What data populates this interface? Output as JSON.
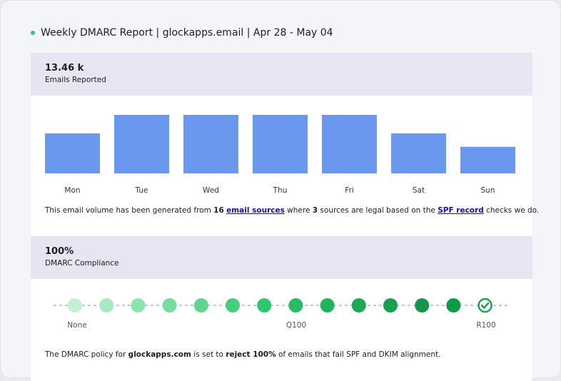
{
  "title": "Weekly DMARC Report | glockapps.email | Apr 28 - May 04",
  "status_color": "#2ecc71",
  "emails": {
    "value": "13.46 k",
    "label": "Emails Reported"
  },
  "chart_data": {
    "type": "bar",
    "categories": [
      "Mon",
      "Tue",
      "Wed",
      "Thu",
      "Fri",
      "Sat",
      "Sun"
    ],
    "values": [
      1580,
      2310,
      2310,
      2310,
      2310,
      1580,
      1050
    ],
    "color": "#6b98ef",
    "grid": false,
    "note_estimated": true
  },
  "volume_text": {
    "p1": "This email volume has been generated from ",
    "n1": "16",
    "link1": "email sources",
    "p2": " where ",
    "n2": "3",
    "p3": " sources are legal based on the ",
    "link2": "SPF record",
    "p4": " checks we do."
  },
  "compliance": {
    "value": "100%",
    "label": "DMARC Compliance"
  },
  "policy_steps": {
    "count": 14,
    "current": 14,
    "labels": {
      "start": "None",
      "mid": "Q100",
      "end": "R100"
    },
    "colors": [
      "#c3efd3",
      "#a8e9c3",
      "#8ee3b0",
      "#76dc9f",
      "#5ed58e",
      "#45ce7e",
      "#2dc76d",
      "#27bd66",
      "#22b35f",
      "#1ea958",
      "#199f51",
      "#15964a",
      "#0f9a48",
      "#1aa452"
    ]
  },
  "policy_text": {
    "p1": "The DMARC policy for ",
    "domain": "glockapps.com",
    "p2": " is set to ",
    "action": "reject 100%",
    "p3": " of emails that fail SPF and DKIM alignment."
  }
}
